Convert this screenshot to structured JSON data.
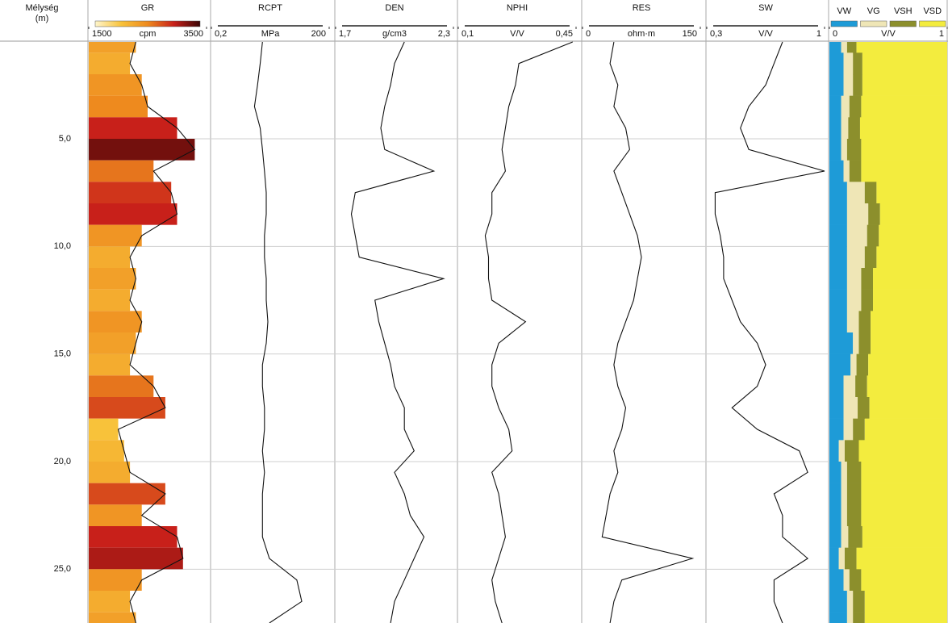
{
  "depth": {
    "title": "Mélység",
    "unit": "(m)",
    "values": [
      0.5,
      1.5,
      2.5,
      3.5,
      4.5,
      5.5,
      6.5,
      7.5,
      8.5,
      9.5,
      10.5,
      11.5,
      12.5,
      13.5,
      14.5,
      15.5,
      16.5,
      17.5,
      18.5,
      19.5,
      20.5,
      21.5,
      22.5,
      23.5,
      24.5,
      25.5,
      26.5,
      27.5
    ],
    "ylim": [
      0.5,
      27.5
    ],
    "yticks": [
      {
        "value": 5,
        "label": "5,0"
      },
      {
        "value": 10,
        "label": "10,0"
      },
      {
        "value": 15,
        "label": "15,0"
      },
      {
        "value": 20,
        "label": "20,0"
      },
      {
        "value": 25,
        "label": "25,0"
      }
    ],
    "grid": true
  },
  "chart_data": [
    {
      "type": "colored-area",
      "title": "GR",
      "unit": "cpm",
      "xlim": [
        1500,
        3500
      ],
      "xticks": [
        1500,
        3500
      ],
      "log_scale": false,
      "color": "#111111",
      "colormap": [
        "#fff6cc",
        "#f8c23a",
        "#ee8a1e",
        "#c8201a",
        "#3a0505"
      ],
      "values": [
        2300,
        2200,
        2400,
        2500,
        3000,
        3300,
        2600,
        2900,
        3000,
        2400,
        2200,
        2300,
        2200,
        2400,
        2300,
        2200,
        2600,
        2800,
        2000,
        2100,
        2200,
        2800,
        2400,
        3000,
        3100,
        2400,
        2200,
        2300
      ]
    },
    {
      "type": "line",
      "title": "RCPT",
      "unit": "MPa",
      "xlim": [
        0.2,
        200
      ],
      "xticks": [
        {
          "value": 0.2,
          "label": "0,2"
        },
        200
      ],
      "log_scale": true,
      "color": "#111111",
      "values": [
        4,
        3.5,
        3,
        2.5,
        3.5,
        4,
        4.5,
        5,
        5,
        4.5,
        4.5,
        5,
        5,
        5.5,
        5,
        4,
        4,
        4.5,
        4.5,
        4,
        4.5,
        4,
        4,
        4,
        6,
        30,
        40,
        6
      ]
    },
    {
      "type": "line",
      "title": "DEN",
      "unit": "g/cm3",
      "xlim": [
        1.7,
        2.3
      ],
      "xticks": [
        {
          "value": 1.7,
          "label": "1,7"
        },
        {
          "value": 2.3,
          "label": "2,3"
        }
      ],
      "log_scale": false,
      "color": "#111111",
      "values": [
        2.05,
        2.0,
        1.98,
        1.95,
        1.93,
        1.95,
        2.2,
        1.8,
        1.78,
        1.8,
        1.82,
        2.25,
        1.9,
        1.92,
        1.95,
        1.98,
        2.0,
        2.05,
        2.05,
        2.1,
        2.0,
        2.05,
        2.08,
        2.15,
        2.1,
        2.05,
        2.0,
        1.98
      ]
    },
    {
      "type": "line",
      "title": "NPHI",
      "unit": "V/V",
      "xlim": [
        0.1,
        0.45
      ],
      "xticks": [
        {
          "value": 0.1,
          "label": "0,1"
        },
        {
          "value": 0.45,
          "label": "0,45"
        }
      ],
      "log_scale": false,
      "color": "#111111",
      "values": [
        0.44,
        0.28,
        0.27,
        0.25,
        0.24,
        0.23,
        0.24,
        0.2,
        0.2,
        0.18,
        0.19,
        0.19,
        0.2,
        0.3,
        0.22,
        0.2,
        0.2,
        0.22,
        0.25,
        0.26,
        0.2,
        0.22,
        0.23,
        0.24,
        0.22,
        0.2,
        0.21,
        0.23
      ]
    },
    {
      "type": "line",
      "title": "RES",
      "unit": "ohm·m",
      "xlim": [
        0,
        150
      ],
      "xticks": [
        0,
        150
      ],
      "log_scale": false,
      "color": "#111111",
      "values": [
        40,
        35,
        45,
        40,
        55,
        60,
        40,
        50,
        60,
        70,
        75,
        70,
        65,
        55,
        45,
        40,
        45,
        55,
        50,
        40,
        45,
        35,
        30,
        25,
        140,
        50,
        40,
        35
      ]
    },
    {
      "type": "line",
      "title": "SW",
      "unit": "V/V",
      "xlim": [
        0.3,
        1
      ],
      "xticks": [
        {
          "value": 0.3,
          "label": "0,3"
        },
        1
      ],
      "log_scale": false,
      "color": "#111111",
      "values": [
        0.75,
        0.7,
        0.65,
        0.55,
        0.5,
        0.55,
        1.0,
        0.35,
        0.35,
        0.38,
        0.4,
        0.4,
        0.45,
        0.5,
        0.6,
        0.65,
        0.6,
        0.45,
        0.6,
        0.85,
        0.9,
        0.7,
        0.75,
        0.75,
        0.9,
        0.7,
        0.7,
        0.75
      ]
    },
    {
      "type": "stacked-bar",
      "unit": "V/V",
      "xlim": [
        0,
        1
      ],
      "xticks": [
        0,
        1
      ],
      "log_scale": false,
      "series": [
        {
          "name": "VW",
          "color": "#1e9bd7",
          "values": [
            0.1,
            0.12,
            0.12,
            0.1,
            0.1,
            0.1,
            0.12,
            0.15,
            0.15,
            0.15,
            0.15,
            0.15,
            0.15,
            0.15,
            0.2,
            0.18,
            0.12,
            0.12,
            0.12,
            0.08,
            0.1,
            0.1,
            0.1,
            0.1,
            0.08,
            0.12,
            0.15,
            0.15
          ]
        },
        {
          "name": "VG",
          "color": "#efe6b6",
          "values": [
            0.05,
            0.08,
            0.08,
            0.07,
            0.06,
            0.05,
            0.05,
            0.15,
            0.18,
            0.17,
            0.15,
            0.12,
            0.12,
            0.1,
            0.05,
            0.05,
            0.1,
            0.12,
            0.08,
            0.05,
            0.05,
            0.05,
            0.05,
            0.06,
            0.05,
            0.05,
            0.05,
            0.05
          ]
        },
        {
          "name": "VSH",
          "color": "#8c8f2c",
          "values": [
            0.08,
            0.08,
            0.08,
            0.1,
            0.1,
            0.12,
            0.1,
            0.1,
            0.1,
            0.1,
            0.1,
            0.1,
            0.1,
            0.1,
            0.1,
            0.1,
            0.1,
            0.1,
            0.1,
            0.12,
            0.12,
            0.12,
            0.12,
            0.12,
            0.1,
            0.1,
            0.1,
            0.1
          ]
        },
        {
          "name": "VSD",
          "color": "#f3ec3e",
          "values": [
            0.77,
            0.72,
            0.72,
            0.73,
            0.74,
            0.73,
            0.73,
            0.6,
            0.57,
            0.58,
            0.6,
            0.63,
            0.63,
            0.65,
            0.65,
            0.67,
            0.68,
            0.66,
            0.7,
            0.75,
            0.73,
            0.73,
            0.73,
            0.72,
            0.77,
            0.73,
            0.7,
            0.7
          ]
        }
      ]
    }
  ]
}
